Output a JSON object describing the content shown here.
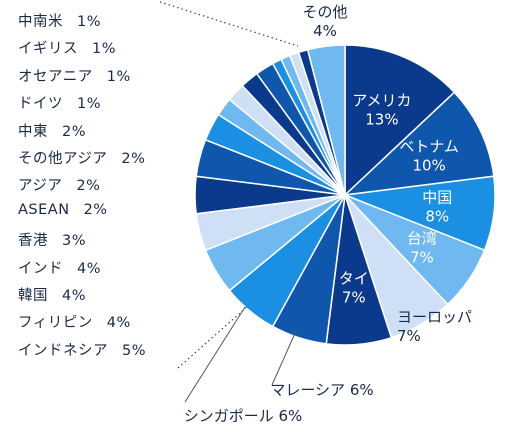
{
  "chart_data": {
    "type": "pie",
    "slices": [
      {
        "label": "アメリカ",
        "value": 13,
        "pct_label": "13%",
        "color": "#0b3a8c",
        "inside": true
      },
      {
        "label": "ベトナム",
        "value": 10,
        "pct_label": "10%",
        "color": "#0f57ad",
        "inside": true
      },
      {
        "label": "中国",
        "value": 8,
        "pct_label": "8%",
        "color": "#1b8fe2",
        "inside": true
      },
      {
        "label": "台湾",
        "value": 7,
        "pct_label": "7%",
        "color": "#6fb9f0",
        "inside": true
      },
      {
        "label": "ヨーロッパ",
        "value": 7,
        "pct_label": "7%",
        "color": "#cfe0f6",
        "inside": false
      },
      {
        "label": "タイ",
        "value": 7,
        "pct_label": "7%",
        "color": "#0b3a8c",
        "inside": true
      },
      {
        "label": "マレーシア",
        "value": 6,
        "pct_label": "6%",
        "color": "#0f57ad",
        "inside": false
      },
      {
        "label": "シンガポール",
        "value": 6,
        "pct_label": "6%",
        "color": "#1b8fe2",
        "inside": false
      },
      {
        "label": "インドネシア",
        "value": 5,
        "pct_label": "5%",
        "color": "#6fb9f0",
        "inside": false
      },
      {
        "label": "フィリピン",
        "value": 4,
        "pct_label": "4%",
        "color": "#cfe0f6",
        "inside": false
      },
      {
        "label": "韓国",
        "value": 4,
        "pct_label": "4%",
        "color": "#0b3a8c",
        "inside": false
      },
      {
        "label": "インド",
        "value": 4,
        "pct_label": "4%",
        "color": "#0f57ad",
        "inside": false
      },
      {
        "label": "香港",
        "value": 3,
        "pct_label": "3%",
        "color": "#1b8fe2",
        "inside": false
      },
      {
        "label": "ASEAN",
        "value": 2,
        "pct_label": "2%",
        "color": "#6fb9f0",
        "inside": false
      },
      {
        "label": "アジア",
        "value": 2,
        "pct_label": "2%",
        "color": "#cfe0f6",
        "inside": false
      },
      {
        "label": "その他アジア",
        "value": 2,
        "pct_label": "2%",
        "color": "#0b3a8c",
        "inside": false
      },
      {
        "label": "中東",
        "value": 2,
        "pct_label": "2%",
        "color": "#0f57ad",
        "inside": false
      },
      {
        "label": "ドイツ",
        "value": 1,
        "pct_label": "1%",
        "color": "#1b8fe2",
        "inside": false
      },
      {
        "label": "オセアニア",
        "value": 1,
        "pct_label": "1%",
        "color": "#6fb9f0",
        "inside": false
      },
      {
        "label": "イギリス",
        "value": 1,
        "pct_label": "1%",
        "color": "#cfe0f6",
        "inside": false
      },
      {
        "label": "中南米",
        "value": 1,
        "pct_label": "1%",
        "color": "#0b3a8c",
        "inside": false
      },
      {
        "label": "その他",
        "value": 4,
        "pct_label": "4%",
        "color": "#6fb9f0",
        "inside": false
      }
    ],
    "left_list": [
      {
        "label": "中南米",
        "pct": "1%"
      },
      {
        "label": "イギリス",
        "pct": "1%"
      },
      {
        "label": "オセアニア",
        "pct": "1%"
      },
      {
        "label": "ドイツ",
        "pct": "1%"
      },
      {
        "label": "中東",
        "pct": "2%"
      },
      {
        "label": "その他アジア",
        "pct": "2%"
      },
      {
        "label": "アジア",
        "pct": "2%"
      },
      {
        "label": "ASEAN",
        "pct": "2%"
      },
      {
        "label": "香港",
        "pct": "3%"
      },
      {
        "label": "インド",
        "pct": "4%"
      },
      {
        "label": "韓国",
        "pct": "4%"
      },
      {
        "label": "フィリピン",
        "pct": "4%"
      },
      {
        "label": "インドネシア",
        "pct": "5%"
      }
    ],
    "text_color": "#1a2a4a"
  }
}
